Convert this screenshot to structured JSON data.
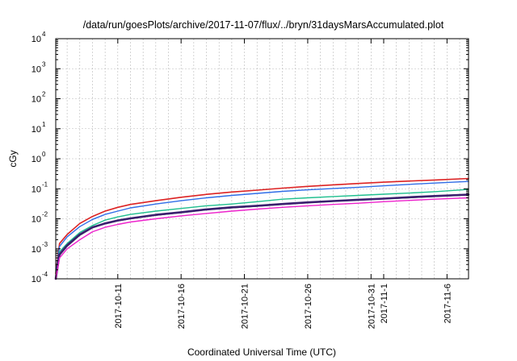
{
  "chart_data": {
    "type": "line",
    "title": "/data/run/goesPlots/archive/2017-11-07/flux/../bryn/31daysMarsAccumulated.plot",
    "xlabel": "Coordinated Universal Time (UTC)",
    "ylabel": "cGy",
    "y_scale": "log",
    "ylim": [
      0.0001,
      10000
    ],
    "xlim_days": [
      6.1,
      38.7
    ],
    "grid": true,
    "legend": "none",
    "y_ticks": [
      {
        "value": 0.0001,
        "base": "10",
        "exp": "-4"
      },
      {
        "value": 0.001,
        "base": "10",
        "exp": "-3"
      },
      {
        "value": 0.01,
        "base": "10",
        "exp": "-2"
      },
      {
        "value": 0.1,
        "base": "10",
        "exp": "-1"
      },
      {
        "value": 1,
        "base": "10",
        "exp": "0"
      },
      {
        "value": 10,
        "base": "10",
        "exp": "1"
      },
      {
        "value": 100,
        "base": "10",
        "exp": "2"
      },
      {
        "value": 1000,
        "base": "10",
        "exp": "3"
      },
      {
        "value": 10000,
        "base": "10",
        "exp": "4"
      }
    ],
    "x_ticks": [
      {
        "day": 11,
        "label": "2017-10-11"
      },
      {
        "day": 16,
        "label": "2017-10-16"
      },
      {
        "day": 21,
        "label": "2017-10-21"
      },
      {
        "day": 26,
        "label": "2017-10-26"
      },
      {
        "day": 31,
        "label": "2017-10-31"
      },
      {
        "day": 32,
        "label": "2017-11-1"
      },
      {
        "day": 37,
        "label": "2017-11-6"
      }
    ],
    "series": [
      {
        "color": "#dd2222",
        "width": 1.6,
        "points": [
          [
            6.1,
            0.00015
          ],
          [
            6.4,
            0.0015
          ],
          [
            7,
            0.003
          ],
          [
            8,
            0.007
          ],
          [
            9,
            0.012
          ],
          [
            10,
            0.018
          ],
          [
            11,
            0.024
          ],
          [
            12,
            0.03
          ],
          [
            14,
            0.04
          ],
          [
            16,
            0.052
          ],
          [
            18,
            0.065
          ],
          [
            20,
            0.078
          ],
          [
            22,
            0.09
          ],
          [
            24,
            0.105
          ],
          [
            26,
            0.12
          ],
          [
            28,
            0.135
          ],
          [
            30,
            0.15
          ],
          [
            32,
            0.165
          ],
          [
            34,
            0.18
          ],
          [
            36,
            0.195
          ],
          [
            38.7,
            0.22
          ]
        ]
      },
      {
        "color": "#2f6ee8",
        "width": 1.4,
        "points": [
          [
            6.1,
            0.00013
          ],
          [
            6.4,
            0.0012
          ],
          [
            7,
            0.0025
          ],
          [
            8,
            0.0055
          ],
          [
            9,
            0.0095
          ],
          [
            10,
            0.014
          ],
          [
            11,
            0.018
          ],
          [
            12,
            0.023
          ],
          [
            14,
            0.031
          ],
          [
            16,
            0.04
          ],
          [
            18,
            0.05
          ],
          [
            20,
            0.06
          ],
          [
            22,
            0.07
          ],
          [
            24,
            0.082
          ],
          [
            26,
            0.092
          ],
          [
            28,
            0.102
          ],
          [
            30,
            0.112
          ],
          [
            32,
            0.125
          ],
          [
            34,
            0.14
          ],
          [
            36,
            0.155
          ],
          [
            38.7,
            0.175
          ]
        ]
      },
      {
        "color": "#1fbf8f",
        "width": 1.4,
        "points": [
          [
            6.1,
            0.0001
          ],
          [
            6.4,
            0.0008
          ],
          [
            7,
            0.0015
          ],
          [
            8,
            0.0035
          ],
          [
            9,
            0.006
          ],
          [
            10,
            0.009
          ],
          [
            11,
            0.0115
          ],
          [
            12,
            0.014
          ],
          [
            14,
            0.018
          ],
          [
            16,
            0.022
          ],
          [
            18,
            0.027
          ],
          [
            20,
            0.031
          ],
          [
            22,
            0.037
          ],
          [
            24,
            0.045
          ],
          [
            26,
            0.05
          ],
          [
            28,
            0.055
          ],
          [
            30,
            0.06
          ],
          [
            32,
            0.066
          ],
          [
            34,
            0.072
          ],
          [
            36,
            0.08
          ],
          [
            38.7,
            0.095
          ]
        ]
      },
      {
        "color": "#1a1a1a",
        "width": 1.2,
        "points": [
          [
            6.1,
            0.0001
          ],
          [
            6.4,
            0.0006
          ],
          [
            7,
            0.0012
          ],
          [
            8,
            0.0028
          ],
          [
            9,
            0.005
          ],
          [
            10,
            0.0068
          ],
          [
            11,
            0.0085
          ],
          [
            12,
            0.01
          ],
          [
            14,
            0.013
          ],
          [
            16,
            0.016
          ],
          [
            18,
            0.02
          ],
          [
            20,
            0.023
          ],
          [
            22,
            0.026
          ],
          [
            24,
            0.03
          ],
          [
            26,
            0.034
          ],
          [
            28,
            0.038
          ],
          [
            30,
            0.042
          ],
          [
            32,
            0.046
          ],
          [
            34,
            0.05
          ],
          [
            36,
            0.055
          ],
          [
            38.7,
            0.062
          ]
        ]
      },
      {
        "color": "#3a1f6e",
        "width": 2.6,
        "points": [
          [
            6.1,
            0.0001
          ],
          [
            6.4,
            0.00065
          ],
          [
            7,
            0.0013
          ],
          [
            8,
            0.003
          ],
          [
            9,
            0.0052
          ],
          [
            10,
            0.007
          ],
          [
            11,
            0.0088
          ],
          [
            12,
            0.0103
          ],
          [
            14,
            0.0135
          ],
          [
            16,
            0.0165
          ],
          [
            18,
            0.0205
          ],
          [
            20,
            0.024
          ],
          [
            22,
            0.027
          ],
          [
            24,
            0.031
          ],
          [
            26,
            0.035
          ],
          [
            28,
            0.039
          ],
          [
            30,
            0.043
          ],
          [
            32,
            0.047
          ],
          [
            34,
            0.052
          ],
          [
            36,
            0.057
          ],
          [
            38.7,
            0.064
          ]
        ]
      },
      {
        "color": "#ee22cc",
        "width": 1.4,
        "points": [
          [
            6.1,
            0.0001
          ],
          [
            6.4,
            0.0005
          ],
          [
            7,
            0.001
          ],
          [
            8,
            0.002
          ],
          [
            9,
            0.0037
          ],
          [
            10,
            0.0052
          ],
          [
            11,
            0.0065
          ],
          [
            12,
            0.0078
          ],
          [
            14,
            0.01
          ],
          [
            16,
            0.0125
          ],
          [
            18,
            0.015
          ],
          [
            20,
            0.018
          ],
          [
            22,
            0.021
          ],
          [
            24,
            0.024
          ],
          [
            26,
            0.027
          ],
          [
            28,
            0.03
          ],
          [
            30,
            0.033
          ],
          [
            32,
            0.037
          ],
          [
            34,
            0.041
          ],
          [
            36,
            0.045
          ],
          [
            38.7,
            0.05
          ]
        ]
      }
    ]
  }
}
